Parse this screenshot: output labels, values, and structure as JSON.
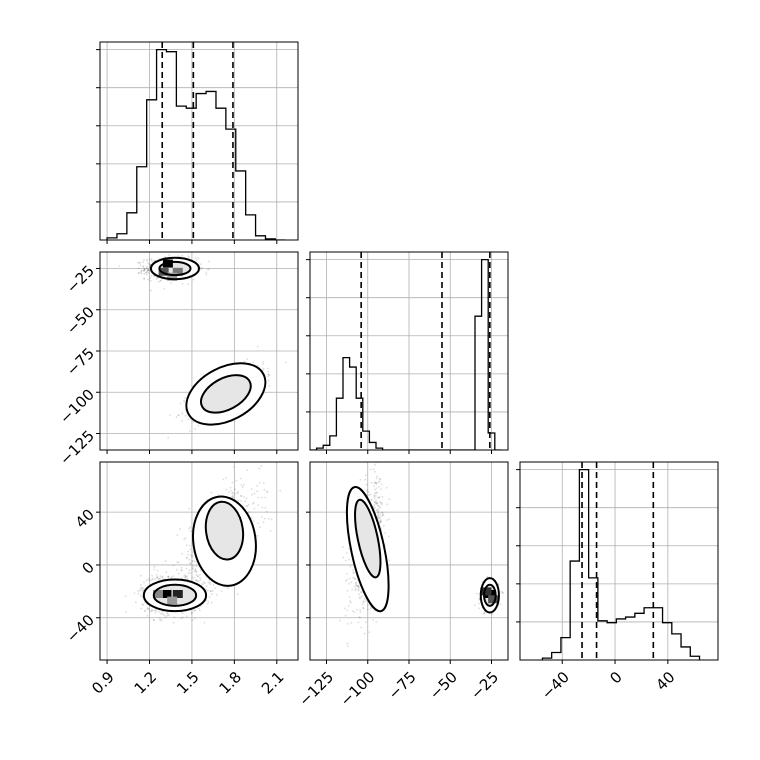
{
  "chart_data": {
    "type": "corner",
    "title": "",
    "parameters": [
      {
        "id": "p1",
        "range": [
          0.85,
          2.25
        ],
        "ticks": [
          0.9,
          1.2,
          1.5,
          1.8,
          2.1
        ],
        "tick_labels": [
          "0.9",
          "1.2",
          "1.5",
          "1.8",
          "2.1"
        ],
        "quantiles": [
          1.29,
          1.51,
          1.79
        ],
        "histogram": {
          "edges": [
            0.9,
            0.97,
            1.04,
            1.11,
            1.18,
            1.25,
            1.32,
            1.39,
            1.46,
            1.53,
            1.6,
            1.67,
            1.74,
            1.81,
            1.88,
            1.95,
            2.02,
            2.09,
            2.16
          ],
          "counts": [
            0.01,
            0.03,
            0.13,
            0.35,
            0.67,
            0.91,
            0.9,
            0.64,
            0.63,
            0.7,
            0.71,
            0.63,
            0.53,
            0.33,
            0.12,
            0.02,
            0.005,
            0
          ]
        }
      },
      {
        "id": "p2",
        "range": [
          -135,
          -15
        ],
        "ticks": [
          -125,
          -100,
          -75,
          -50,
          -25
        ],
        "tick_labels": [
          "−125",
          "−100",
          "−75",
          "−50",
          "−25"
        ],
        "quantiles": [
          -104,
          -55,
          -26
        ],
        "histogram": {
          "edges": [
            -135,
            -131,
            -127,
            -123,
            -119,
            -115,
            -111,
            -107,
            -103,
            -99,
            -95,
            -91,
            -87,
            -83,
            -79,
            -75,
            -71,
            -67,
            -63,
            -59,
            -55,
            -51,
            -47,
            -43,
            -39,
            -35,
            -31,
            -27,
            -23,
            -19
          ],
          "counts": [
            0,
            0.02,
            0.05,
            0.15,
            0.55,
            0.98,
            0.88,
            0.55,
            0.2,
            0.08,
            0.02,
            0,
            0,
            0,
            0,
            0,
            0,
            0,
            0,
            0,
            0,
            0,
            0,
            0,
            0,
            1.42,
            2.02,
            0.18,
            0
          ]
        }
      },
      {
        "id": "p3",
        "range": [
          -72,
          78
        ],
        "ticks": [
          -40,
          0,
          40
        ],
        "tick_labels": [
          "−40",
          "0",
          "40"
        ],
        "quantiles": [
          -25,
          -14,
          29
        ],
        "histogram": {
          "edges": [
            -55,
            -48,
            -41,
            -34,
            -27,
            -20,
            -13,
            -6,
            1,
            8,
            15,
            22,
            29,
            36,
            43,
            50,
            57,
            64
          ],
          "counts": [
            0.01,
            0.04,
            0.12,
            0.53,
            1.02,
            0.44,
            0.21,
            0.2,
            0.22,
            0.23,
            0.25,
            0.28,
            0.28,
            0.2,
            0.14,
            0.07,
            0.02
          ]
        }
      }
    ],
    "pairs": [
      {
        "x": "p1",
        "y": "p2",
        "modes": [
          {
            "center": [
              1.35,
              -25
            ],
            "sx": 0.09,
            "sy": 3.2,
            "rho": 0.0,
            "weight": 0.55
          },
          {
            "center": [
              1.75,
              -100
            ],
            "sx": 0.13,
            "sy": 7.5,
            "rho": 0.65,
            "weight": 0.45
          }
        ],
        "contours": [
          {
            "center": [
              1.38,
              -25
            ],
            "rx": 0.17,
            "ry": 6.5,
            "angle": 0
          },
          {
            "center": [
              1.38,
              -25
            ],
            "rx": 0.11,
            "ry": 4,
            "angle": 0
          },
          {
            "center": [
              1.74,
              -101
            ],
            "rx": 0.3,
            "ry": 16,
            "angle": -28
          },
          {
            "center": [
              1.74,
              -101
            ],
            "rx": 0.19,
            "ry": 9.5,
            "angle": -28
          }
        ],
        "hot_cells": [
          [
            1.33,
            -22,
            "#000000"
          ],
          [
            1.3,
            -27,
            "#555555"
          ],
          [
            1.4,
            -27,
            "#777777"
          ],
          [
            1.36,
            -30,
            "#a0a0a0"
          ]
        ]
      },
      {
        "x": "p1",
        "y": "p3",
        "modes": [
          {
            "center": [
              1.36,
              -22
            ],
            "sx": 0.11,
            "sy": 7.5,
            "rho": 0.0,
            "weight": 0.5
          },
          {
            "center": [
              1.7,
              20
            ],
            "sx": 0.14,
            "sy": 20,
            "rho": 0.55,
            "weight": 0.5
          }
        ],
        "contours": [
          {
            "center": [
              1.38,
              -23
            ],
            "rx": 0.22,
            "ry": 12,
            "angle": 0
          },
          {
            "center": [
              1.38,
              -23
            ],
            "rx": 0.15,
            "ry": 8,
            "angle": 0
          },
          {
            "center": [
              1.73,
              18
            ],
            "rx": 0.22,
            "ry": 34,
            "angle": -8
          },
          {
            "center": [
              1.73,
              26
            ],
            "rx": 0.13,
            "ry": 22,
            "angle": -8
          }
        ],
        "hot_cells": [
          [
            1.32,
            -22,
            "#000000"
          ],
          [
            1.4,
            -22,
            "#222222"
          ],
          [
            1.26,
            -22,
            "#888888"
          ],
          [
            1.36,
            -27,
            "#999999"
          ]
        ]
      },
      {
        "x": "p2",
        "y": "p3",
        "modes": [
          {
            "center": [
              -100,
              15
            ],
            "sx": 5,
            "sy": 23,
            "rho": 0.5,
            "weight": 0.5
          },
          {
            "center": [
              -26,
              -23
            ],
            "sx": 2.5,
            "sy": 5,
            "rho": 0.0,
            "weight": 0.5
          }
        ],
        "contours": [
          {
            "center": [
              -100,
              12
            ],
            "rx": 10,
            "ry": 48,
            "angle": -12
          },
          {
            "center": [
              -100,
              20
            ],
            "rx": 6,
            "ry": 30,
            "angle": -12
          },
          {
            "center": [
              -26,
              -23
            ],
            "rx": 5.5,
            "ry": 13,
            "angle": 0
          },
          {
            "center": [
              -26,
              -23
            ],
            "rx": 3.5,
            "ry": 8,
            "angle": 0
          }
        ],
        "hot_cells": [
          [
            -26,
            -22,
            "#000000"
          ],
          [
            -28,
            -20,
            "#333333"
          ],
          [
            -24,
            -26,
            "#555555"
          ]
        ]
      }
    ],
    "grid": true,
    "legend": "none"
  }
}
